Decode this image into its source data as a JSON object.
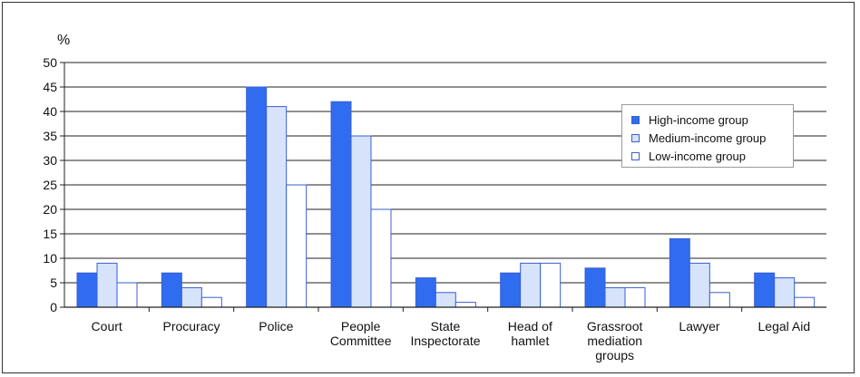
{
  "chart_data": {
    "type": "bar",
    "ylabel": "%",
    "ylim": [
      0,
      50
    ],
    "yticks": [
      0,
      5,
      10,
      15,
      20,
      25,
      30,
      35,
      40,
      45,
      50
    ],
    "grid": "horizontal",
    "legend_position": "top-right",
    "categories": [
      [
        "Court"
      ],
      [
        "Procuracy"
      ],
      [
        "Police"
      ],
      [
        "People",
        "Committee"
      ],
      [
        "State",
        "Inspectorate"
      ],
      [
        "Head of",
        "hamlet"
      ],
      [
        "Grassroot",
        "mediation",
        "groups"
      ],
      [
        "Lawyer"
      ],
      [
        "Legal Aid"
      ]
    ],
    "series": [
      {
        "name": "High-income group",
        "values": [
          7,
          7,
          45,
          42,
          6,
          7,
          8,
          14,
          7
        ],
        "color": "#2f6cf0"
      },
      {
        "name": "Medium-income group",
        "values": [
          9,
          4,
          41,
          35,
          3,
          9,
          4,
          9,
          6
        ],
        "color": "#d6e3fb"
      },
      {
        "name": "Low-income group",
        "values": [
          5,
          2,
          25,
          20,
          1,
          9,
          4,
          3,
          2
        ],
        "color": "#ffffff"
      }
    ]
  }
}
